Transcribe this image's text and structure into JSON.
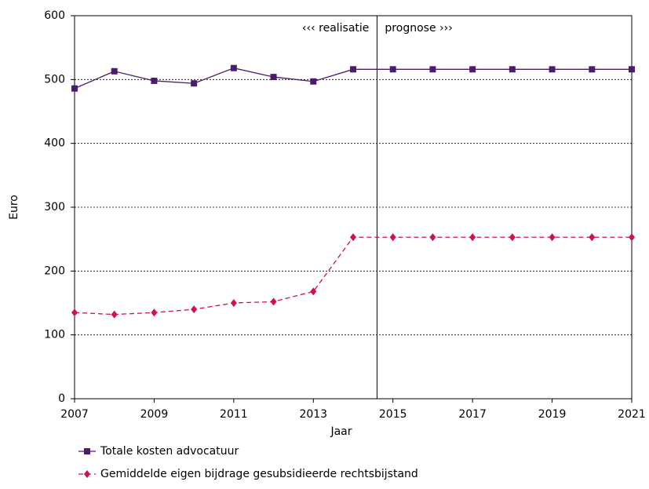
{
  "chart_data": {
    "type": "line",
    "x_label": "Jaar",
    "y_label": "Euro",
    "x": [
      2007,
      2008,
      2009,
      2010,
      2011,
      2012,
      2013,
      2014,
      2015,
      2016,
      2017,
      2018,
      2019,
      2020,
      2021
    ],
    "series": [
      {
        "name": "Totale kosten advocatuur",
        "color": "#4b1c6b",
        "line_style": "solid",
        "marker": "square",
        "values": [
          486,
          513,
          498,
          494,
          518,
          504,
          497,
          516,
          516,
          516,
          516,
          516,
          516,
          516,
          516
        ]
      },
      {
        "name": "Gemiddelde eigen bijdrage gesubsidieerde rechtsbijstand",
        "color": "#cc1155",
        "line_style": "dashed",
        "marker": "diamond",
        "values": [
          135,
          132,
          135,
          140,
          150,
          152,
          168,
          253,
          253,
          253,
          253,
          253,
          253,
          253,
          253
        ]
      }
    ],
    "xlim": [
      2007,
      2021
    ],
    "xticks": [
      2007,
      2009,
      2011,
      2013,
      2015,
      2017,
      2019,
      2021
    ],
    "ylim": [
      0,
      600
    ],
    "yticks": [
      0,
      100,
      200,
      300,
      400,
      500,
      600
    ],
    "grid": true,
    "divider": {
      "x": 2014.6,
      "left_label": "‹‹‹ realisatie",
      "right_label": "prognose ›››"
    },
    "legend": "bottom"
  }
}
